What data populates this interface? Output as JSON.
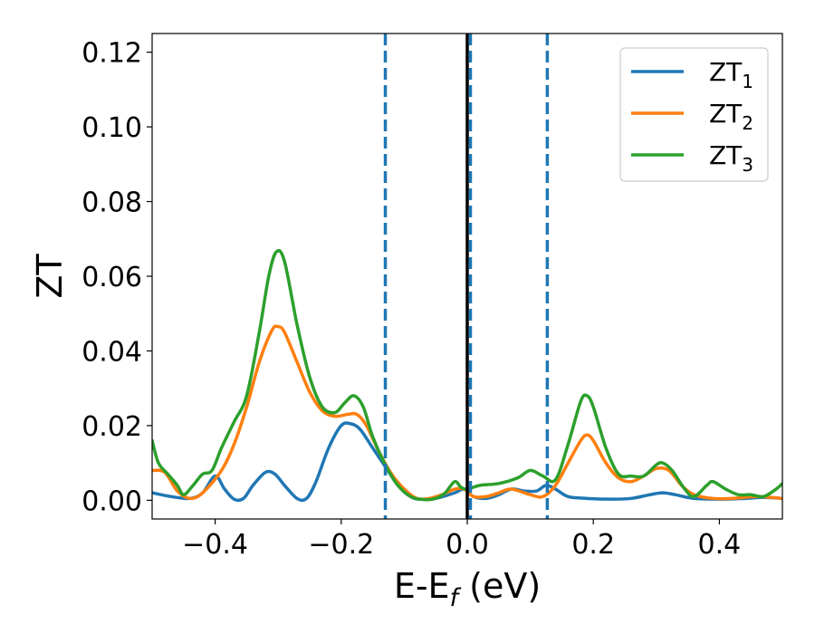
{
  "chart_data": {
    "type": "line",
    "xlabel_parts": [
      "E-E",
      "f",
      " (eV)"
    ],
    "ylabel": "ZT",
    "xlim": [
      -0.5,
      0.5
    ],
    "ylim": [
      -0.005,
      0.125
    ],
    "x_ticks": [
      -0.4,
      -0.2,
      0.0,
      0.2,
      0.4
    ],
    "x_tick_labels": [
      "−0.4",
      "−0.2",
      "0.0",
      "0.2",
      "0.4"
    ],
    "y_ticks": [
      0.0,
      0.02,
      0.04,
      0.06,
      0.08,
      0.1,
      0.12
    ],
    "y_tick_labels": [
      "0.00",
      "0.02",
      "0.04",
      "0.06",
      "0.08",
      "0.10",
      "0.12"
    ],
    "grid": false,
    "legend_position": "top-right",
    "vertical_lines": [
      {
        "x": 0.0,
        "style": "solid",
        "color": "#000000"
      },
      {
        "x": -0.13,
        "style": "dashed",
        "color": "#1f77b4"
      },
      {
        "x": 0.005,
        "style": "dashed",
        "color": "#1f77b4"
      },
      {
        "x": 0.127,
        "style": "dashed",
        "color": "#1f77b4"
      }
    ],
    "series": [
      {
        "name": "ZT",
        "subscript": "1",
        "color": "#1f77b4",
        "points": [
          [
            -0.5,
            0.002
          ],
          [
            -0.47,
            0.001
          ],
          [
            -0.44,
            0.0005
          ],
          [
            -0.42,
            0.002
          ],
          [
            -0.4,
            0.0065
          ],
          [
            -0.385,
            0.003
          ],
          [
            -0.37,
            0.0003
          ],
          [
            -0.355,
            0.0005
          ],
          [
            -0.34,
            0.004
          ],
          [
            -0.32,
            0.0075
          ],
          [
            -0.305,
            0.007
          ],
          [
            -0.29,
            0.004
          ],
          [
            -0.27,
            0.0005
          ],
          [
            -0.255,
            0.0005
          ],
          [
            -0.24,
            0.005
          ],
          [
            -0.22,
            0.014
          ],
          [
            -0.2,
            0.02
          ],
          [
            -0.185,
            0.0205
          ],
          [
            -0.17,
            0.019
          ],
          [
            -0.15,
            0.014
          ],
          [
            -0.13,
            0.009
          ],
          [
            -0.11,
            0.004
          ],
          [
            -0.09,
            0.001
          ],
          [
            -0.075,
            0.0003
          ],
          [
            -0.05,
            0.0005
          ],
          [
            -0.02,
            0.002
          ],
          [
            -0.005,
            0.003
          ],
          [
            0.01,
            0.001
          ],
          [
            0.03,
            0.0005
          ],
          [
            0.05,
            0.0015
          ],
          [
            0.07,
            0.003
          ],
          [
            0.09,
            0.0025
          ],
          [
            0.11,
            0.0025
          ],
          [
            0.125,
            0.004
          ],
          [
            0.14,
            0.003
          ],
          [
            0.16,
            0.001
          ],
          [
            0.19,
            0.0005
          ],
          [
            0.23,
            0.0003
          ],
          [
            0.26,
            0.0005
          ],
          [
            0.29,
            0.0015
          ],
          [
            0.31,
            0.002
          ],
          [
            0.33,
            0.0015
          ],
          [
            0.36,
            0.0005
          ],
          [
            0.4,
            0.0003
          ],
          [
            0.44,
            0.0005
          ],
          [
            0.47,
            0.0008
          ],
          [
            0.5,
            0.0005
          ]
        ]
      },
      {
        "name": "ZT",
        "subscript": "2",
        "color": "#ff7f0e",
        "points": [
          [
            -0.5,
            0.008
          ],
          [
            -0.48,
            0.0075
          ],
          [
            -0.46,
            0.0025
          ],
          [
            -0.44,
            0.0005
          ],
          [
            -0.42,
            0.002
          ],
          [
            -0.39,
            0.008
          ],
          [
            -0.37,
            0.015
          ],
          [
            -0.35,
            0.025
          ],
          [
            -0.33,
            0.037
          ],
          [
            -0.31,
            0.0455
          ],
          [
            -0.3,
            0.0465
          ],
          [
            -0.29,
            0.045
          ],
          [
            -0.27,
            0.037
          ],
          [
            -0.25,
            0.029
          ],
          [
            -0.23,
            0.024
          ],
          [
            -0.21,
            0.0225
          ],
          [
            -0.19,
            0.023
          ],
          [
            -0.175,
            0.023
          ],
          [
            -0.16,
            0.02
          ],
          [
            -0.14,
            0.013
          ],
          [
            -0.12,
            0.007
          ],
          [
            -0.1,
            0.003
          ],
          [
            -0.08,
            0.0005
          ],
          [
            -0.06,
            0.0005
          ],
          [
            -0.04,
            0.0015
          ],
          [
            -0.02,
            0.003
          ],
          [
            -0.005,
            0.003
          ],
          [
            0.01,
            0.001
          ],
          [
            0.03,
            0.001
          ],
          [
            0.05,
            0.002
          ],
          [
            0.07,
            0.003
          ],
          [
            0.1,
            0.0015
          ],
          [
            0.12,
            0.001
          ],
          [
            0.14,
            0.004
          ],
          [
            0.16,
            0.01
          ],
          [
            0.18,
            0.016
          ],
          [
            0.19,
            0.0175
          ],
          [
            0.2,
            0.016
          ],
          [
            0.22,
            0.01
          ],
          [
            0.24,
            0.006
          ],
          [
            0.26,
            0.005
          ],
          [
            0.28,
            0.0065
          ],
          [
            0.3,
            0.0085
          ],
          [
            0.32,
            0.008
          ],
          [
            0.34,
            0.004
          ],
          [
            0.36,
            0.0015
          ],
          [
            0.39,
            0.0005
          ],
          [
            0.42,
            0.0005
          ],
          [
            0.46,
            0.001
          ],
          [
            0.5,
            0.0005
          ]
        ]
      },
      {
        "name": "ZT",
        "subscript": "3",
        "color": "#2ca02c",
        "points": [
          [
            -0.5,
            0.016
          ],
          [
            -0.49,
            0.01
          ],
          [
            -0.475,
            0.007
          ],
          [
            -0.46,
            0.004
          ],
          [
            -0.45,
            0.0015
          ],
          [
            -0.435,
            0.004
          ],
          [
            -0.42,
            0.007
          ],
          [
            -0.405,
            0.008
          ],
          [
            -0.39,
            0.014
          ],
          [
            -0.37,
            0.021
          ],
          [
            -0.35,
            0.028
          ],
          [
            -0.33,
            0.045
          ],
          [
            -0.315,
            0.06
          ],
          [
            -0.303,
            0.0665
          ],
          [
            -0.29,
            0.064
          ],
          [
            -0.27,
            0.047
          ],
          [
            -0.25,
            0.033
          ],
          [
            -0.23,
            0.025
          ],
          [
            -0.21,
            0.0235
          ],
          [
            -0.195,
            0.026
          ],
          [
            -0.18,
            0.028
          ],
          [
            -0.165,
            0.025
          ],
          [
            -0.15,
            0.017
          ],
          [
            -0.13,
            0.0095
          ],
          [
            -0.11,
            0.004
          ],
          [
            -0.09,
            0.001
          ],
          [
            -0.07,
            0.0002
          ],
          [
            -0.05,
            0.0005
          ],
          [
            -0.035,
            0.002
          ],
          [
            -0.02,
            0.005
          ],
          [
            -0.01,
            0.0035
          ],
          [
            0.0,
            0.003
          ],
          [
            0.02,
            0.004
          ],
          [
            0.05,
            0.0045
          ],
          [
            0.08,
            0.006
          ],
          [
            0.1,
            0.008
          ],
          [
            0.12,
            0.0065
          ],
          [
            0.14,
            0.0055
          ],
          [
            0.16,
            0.015
          ],
          [
            0.18,
            0.0265
          ],
          [
            0.19,
            0.028
          ],
          [
            0.2,
            0.025
          ],
          [
            0.22,
            0.014
          ],
          [
            0.24,
            0.007
          ],
          [
            0.26,
            0.0065
          ],
          [
            0.28,
            0.0065
          ],
          [
            0.3,
            0.0095
          ],
          [
            0.31,
            0.01
          ],
          [
            0.325,
            0.008
          ],
          [
            0.345,
            0.003
          ],
          [
            0.36,
            0.001
          ],
          [
            0.38,
            0.004
          ],
          [
            0.39,
            0.005
          ],
          [
            0.41,
            0.003
          ],
          [
            0.43,
            0.0015
          ],
          [
            0.45,
            0.0015
          ],
          [
            0.47,
            0.001
          ],
          [
            0.49,
            0.003
          ],
          [
            0.5,
            0.0045
          ]
        ]
      }
    ]
  }
}
